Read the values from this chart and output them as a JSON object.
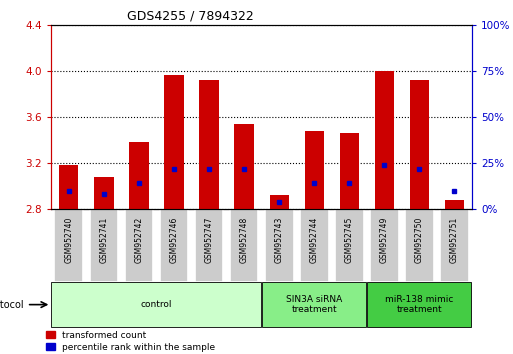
{
  "title": "GDS4255 / 7894322",
  "samples": [
    "GSM952740",
    "GSM952741",
    "GSM952742",
    "GSM952746",
    "GSM952747",
    "GSM952748",
    "GSM952743",
    "GSM952744",
    "GSM952745",
    "GSM952749",
    "GSM952750",
    "GSM952751"
  ],
  "red_values": [
    3.18,
    3.08,
    3.38,
    3.96,
    3.92,
    3.54,
    2.92,
    3.48,
    3.46,
    4.0,
    3.92,
    2.88
  ],
  "blue_percentiles": [
    10,
    8,
    14,
    22,
    22,
    22,
    4,
    14,
    14,
    24,
    22,
    10
  ],
  "ymin": 2.8,
  "ymax": 4.4,
  "y2min": 0,
  "y2max": 100,
  "yticks": [
    2.8,
    3.2,
    3.6,
    4.0,
    4.4
  ],
  "y2ticks": [
    0,
    25,
    50,
    75,
    100
  ],
  "groups": [
    {
      "label": "control",
      "start": 0,
      "end": 6,
      "color": "#ccffcc"
    },
    {
      "label": "SIN3A siRNA\ntreatment",
      "start": 6,
      "end": 9,
      "color": "#88ee88"
    },
    {
      "label": "miR-138 mimic\ntreatment",
      "start": 9,
      "end": 12,
      "color": "#44cc44"
    }
  ],
  "bar_color_red": "#cc0000",
  "bar_color_blue": "#0000cc",
  "bar_width": 0.55,
  "background_color": "#ffffff",
  "left_axis_color": "#cc0000",
  "right_axis_color": "#0000cc",
  "sample_box_color": "#cccccc",
  "plot_border_color": "#000000"
}
